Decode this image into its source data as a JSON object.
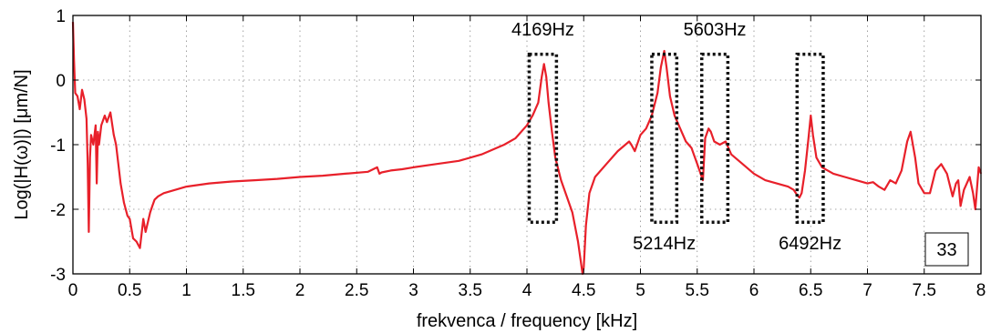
{
  "chart_data": {
    "type": "line",
    "title": "",
    "xlabel": "frekvenca / frequency [kHz]",
    "ylabel": "Log(|H(ω)|) [μm/N]",
    "xlim": [
      0,
      8
    ],
    "ylim": [
      -3,
      1
    ],
    "grid": true,
    "x_ticks": [
      0,
      0.5,
      1,
      1.5,
      2,
      2.5,
      3,
      3.5,
      4,
      4.5,
      5,
      5.5,
      6,
      6.5,
      7,
      7.5,
      8
    ],
    "x_tick_labels": [
      "0",
      "0.5",
      "1",
      "1.5",
      "2",
      "2.5",
      "3",
      "3.5",
      "4",
      "4.5",
      "5",
      "5.5",
      "6",
      "6.5",
      "7",
      "7.5",
      "8"
    ],
    "y_ticks": [
      1,
      0,
      -1,
      -2,
      -3
    ],
    "y_tick_labels": [
      "1",
      "0",
      "-1",
      "-2",
      "-3"
    ],
    "line_color": "#e8202a",
    "series": [
      {
        "x": [
          0.0,
          0.01,
          0.02,
          0.04,
          0.06,
          0.08,
          0.1,
          0.12,
          0.13,
          0.14,
          0.15,
          0.16,
          0.18,
          0.2,
          0.21,
          0.22,
          0.23,
          0.25,
          0.28,
          0.3,
          0.33,
          0.36,
          0.38,
          0.4,
          0.42,
          0.45,
          0.48,
          0.5,
          0.53,
          0.56,
          0.59,
          0.62,
          0.64,
          0.66,
          0.68,
          0.7,
          0.72,
          0.75,
          0.8,
          0.9,
          1.0,
          1.2,
          1.4,
          1.6,
          1.8,
          2.0,
          2.2,
          2.4,
          2.6,
          2.68,
          2.7,
          2.72,
          2.8,
          2.9,
          3.0,
          3.2,
          3.4,
          3.6,
          3.8,
          3.9,
          4.0,
          4.05,
          4.1,
          4.13,
          4.15,
          4.17,
          4.19,
          4.22,
          4.25,
          4.3,
          4.35,
          4.4,
          4.45,
          4.47,
          4.49,
          4.5,
          4.52,
          4.55,
          4.6,
          4.7,
          4.8,
          4.9,
          4.92,
          4.95,
          5.0,
          5.05,
          5.1,
          5.15,
          5.18,
          5.21,
          5.23,
          5.26,
          5.3,
          5.35,
          5.4,
          5.45,
          5.5,
          5.55,
          5.57,
          5.6,
          5.62,
          5.65,
          5.7,
          5.75,
          5.8,
          5.9,
          6.0,
          6.1,
          6.2,
          6.3,
          6.35,
          6.38,
          6.4,
          6.42,
          6.45,
          6.48,
          6.5,
          6.52,
          6.55,
          6.6,
          6.7,
          6.8,
          6.9,
          7.0,
          7.05,
          7.1,
          7.15,
          7.2,
          7.25,
          7.3,
          7.35,
          7.38,
          7.42,
          7.45,
          7.5,
          7.55,
          7.6,
          7.65,
          7.7,
          7.75,
          7.78,
          7.8,
          7.82,
          7.85,
          7.9,
          7.93,
          7.95,
          7.98,
          8.0
        ],
        "y": [
          0.9,
          0.3,
          -0.2,
          -0.25,
          -0.45,
          -0.15,
          -0.3,
          -0.6,
          -1.3,
          -2.35,
          -1.2,
          -0.85,
          -1.0,
          -0.7,
          -1.6,
          -0.8,
          -1.0,
          -0.7,
          -0.55,
          -0.65,
          -0.5,
          -0.85,
          -1.0,
          -1.3,
          -1.6,
          -1.9,
          -2.1,
          -2.15,
          -2.45,
          -2.5,
          -2.6,
          -2.15,
          -2.35,
          -2.2,
          -2.05,
          -1.95,
          -1.85,
          -1.8,
          -1.75,
          -1.7,
          -1.65,
          -1.6,
          -1.57,
          -1.55,
          -1.53,
          -1.5,
          -1.48,
          -1.45,
          -1.42,
          -1.35,
          -1.45,
          -1.43,
          -1.4,
          -1.38,
          -1.35,
          -1.3,
          -1.25,
          -1.15,
          -1.0,
          -0.9,
          -0.7,
          -0.55,
          -0.35,
          0.05,
          0.25,
          0.05,
          -0.35,
          -0.8,
          -1.2,
          -1.55,
          -1.8,
          -2.05,
          -2.5,
          -2.75,
          -3.0,
          -2.9,
          -2.25,
          -1.75,
          -1.5,
          -1.3,
          -1.1,
          -0.95,
          -1.0,
          -1.1,
          -0.85,
          -0.75,
          -0.55,
          -0.2,
          0.2,
          0.45,
          0.2,
          -0.25,
          -0.55,
          -0.75,
          -0.95,
          -1.05,
          -1.3,
          -1.55,
          -0.9,
          -0.75,
          -0.8,
          -0.95,
          -1.0,
          -0.95,
          -1.15,
          -1.3,
          -1.45,
          -1.55,
          -1.6,
          -1.65,
          -1.7,
          -1.78,
          -1.82,
          -1.75,
          -1.4,
          -0.9,
          -0.55,
          -0.85,
          -1.2,
          -1.35,
          -1.45,
          -1.5,
          -1.55,
          -1.6,
          -1.58,
          -1.65,
          -1.7,
          -1.55,
          -1.6,
          -1.4,
          -0.95,
          -0.8,
          -1.2,
          -1.6,
          -1.75,
          -1.75,
          -1.4,
          -1.3,
          -1.45,
          -1.8,
          -1.6,
          -1.55,
          -1.95,
          -1.7,
          -1.5,
          -1.75,
          -2.0,
          -1.35,
          -1.45
        ]
      }
    ],
    "annotations": [
      {
        "label": "4169Hz",
        "x0": 4.02,
        "x1": 4.26,
        "y0": -2.2,
        "y1": 0.4
      },
      {
        "label": "5214Hz",
        "x0": 5.1,
        "x1": 5.32,
        "y0": -2.2,
        "y1": 0.4
      },
      {
        "label": "5603Hz",
        "x0": 5.54,
        "x1": 5.77,
        "y0": -2.2,
        "y1": 0.4
      },
      {
        "label": "6492Hz",
        "x0": 6.38,
        "x1": 6.61,
        "y0": -2.2,
        "y1": 0.4
      }
    ],
    "badge": "33"
  }
}
